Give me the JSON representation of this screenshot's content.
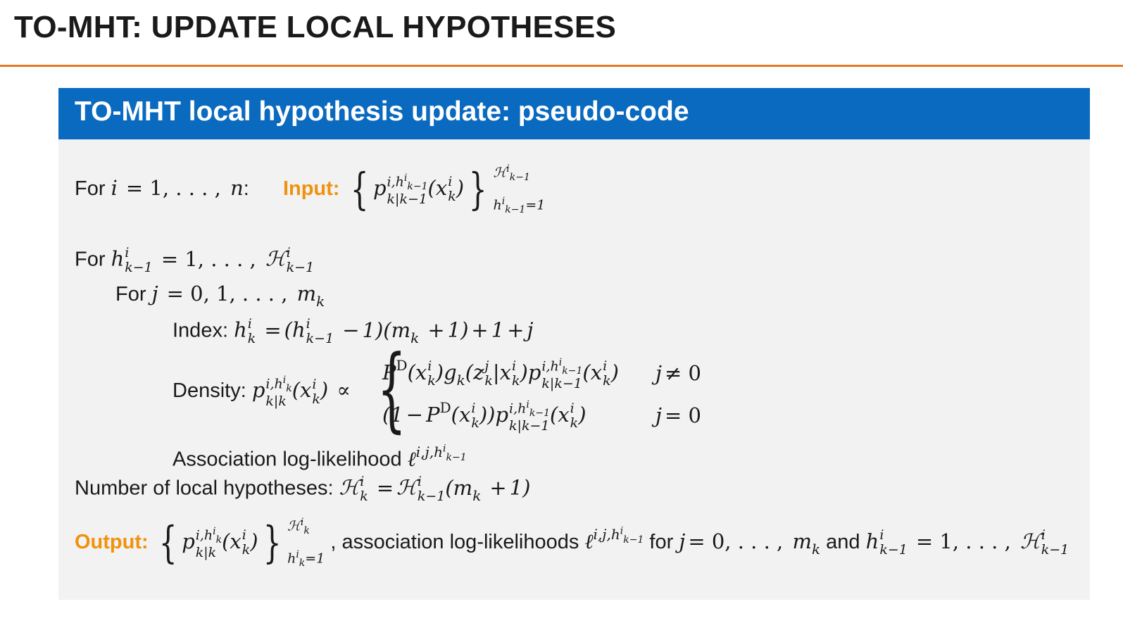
{
  "slide": {
    "title": "TO-MHT: UPDATE LOCAL HYPOTHESES"
  },
  "block": {
    "title": "TO-MHT local hypothesis update: pseudo-code",
    "line1": {
      "for_label": "For",
      "range_text": "= 1, . . . , ",
      "n": "n",
      "colon": ":",
      "input_label": "Input:"
    },
    "line2": {
      "for_label": "For",
      "range_text": "= 1, . . . , "
    },
    "line3": {
      "for_label": "For",
      "range_text": "= 0, 1, . . . , "
    },
    "line4": {
      "label": "Index:",
      "formula_tail": "= (h",
      "minus_one": "− 1)(m",
      "plus_one": "+ 1) + 1 + "
    },
    "line5": {
      "label": "Density:",
      "case1_cond": "≠ 0",
      "case2_cond": "= 0"
    },
    "line6": {
      "label": "Association log-likelihood"
    },
    "line7": {
      "label": "Number of local hypotheses:"
    },
    "line8": {
      "output_label": "Output:",
      "assoc_text": ", association log-likelihoods",
      "for_text": "for",
      "and_text": "and",
      "range1": "= 0, . . . , ",
      "range2": "= 1, . . . , "
    }
  }
}
